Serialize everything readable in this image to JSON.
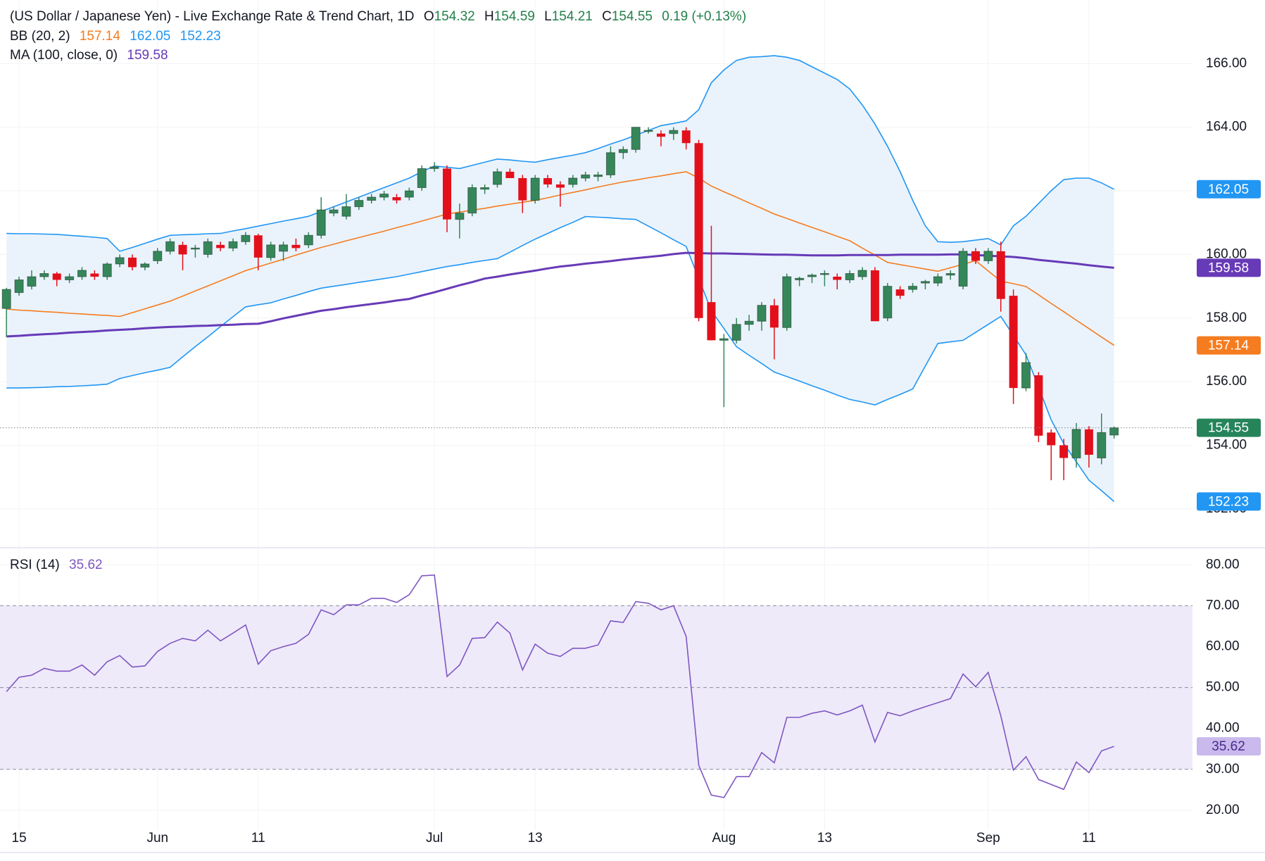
{
  "chart_data": [
    {
      "type": "candlestick",
      "title": "(US Dollar / Japanese Yen) - Live Exchange Rate & Trend Chart, 1D",
      "ohlc_labels": [
        "O",
        "H",
        "L",
        "C"
      ],
      "change": "0.19 (+0.13%)",
      "categories": [
        null,
        "15",
        null,
        null,
        null,
        null,
        null,
        null,
        null,
        null,
        null,
        null,
        "Jun",
        null,
        null,
        null,
        null,
        null,
        null,
        null,
        "11",
        null,
        null,
        null,
        null,
        null,
        null,
        null,
        null,
        null,
        null,
        null,
        null,
        null,
        "Jul",
        null,
        null,
        null,
        null,
        null,
        null,
        null,
        "13",
        null,
        null,
        null,
        null,
        null,
        null,
        null,
        null,
        null,
        null,
        null,
        null,
        null,
        null,
        "Aug",
        null,
        null,
        null,
        null,
        null,
        null,
        null,
        "13",
        null,
        null,
        null,
        null,
        null,
        null,
        null,
        null,
        null,
        null,
        null,
        null,
        "Sep",
        null,
        null,
        null,
        null,
        null,
        null,
        null,
        "11",
        null,
        null
      ],
      "open": [
        158.3,
        158.8,
        159.0,
        159.3,
        159.4,
        159.2,
        159.3,
        159.4,
        159.3,
        159.7,
        159.9,
        159.6,
        159.8,
        160.1,
        160.3,
        160.2,
        160.0,
        160.3,
        160.2,
        160.4,
        160.6,
        159.9,
        160.1,
        160.3,
        160.3,
        160.6,
        161.3,
        161.2,
        161.5,
        161.7,
        161.8,
        161.8,
        161.8,
        162.1,
        162.7,
        162.7,
        161.1,
        161.3,
        162.05,
        162.2,
        162.6,
        162.4,
        161.7,
        162.4,
        162.2,
        162.2,
        162.4,
        162.45,
        162.5,
        163.2,
        163.3,
        163.9,
        163.8,
        163.8,
        163.9,
        163.5,
        158.5,
        157.3,
        157.3,
        157.8,
        157.9,
        158.4,
        157.7,
        159.2,
        159.3,
        159.4,
        159.3,
        159.2,
        159.3,
        159.5,
        158.0,
        158.9,
        158.9,
        159.1,
        159.1,
        159.35,
        159.0,
        160.1,
        159.8,
        160.1,
        158.7,
        155.8,
        156.2,
        154.4,
        154.0,
        153.6,
        154.5,
        153.6,
        154.32
      ],
      "high": [
        158.95,
        159.3,
        159.5,
        159.5,
        159.45,
        159.4,
        159.6,
        159.5,
        159.75,
        160.0,
        160.0,
        159.75,
        160.2,
        160.5,
        160.4,
        160.3,
        160.5,
        160.4,
        160.5,
        160.7,
        160.65,
        160.4,
        160.4,
        160.5,
        160.7,
        161.8,
        161.5,
        161.9,
        161.8,
        161.9,
        162.0,
        161.9,
        162.1,
        162.8,
        162.9,
        162.8,
        161.6,
        162.2,
        162.2,
        162.7,
        162.7,
        162.5,
        162.5,
        162.5,
        162.3,
        162.5,
        162.6,
        162.6,
        163.4,
        163.4,
        164.0,
        164.0,
        163.9,
        164.0,
        164.0,
        163.6,
        160.9,
        157.5,
        158.0,
        158.1,
        158.5,
        158.6,
        159.4,
        159.3,
        159.4,
        159.5,
        159.4,
        159.5,
        159.6,
        159.6,
        159.1,
        159.0,
        159.1,
        159.2,
        159.4,
        159.5,
        160.2,
        160.2,
        160.2,
        160.4,
        158.9,
        156.9,
        156.3,
        154.5,
        154.2,
        154.7,
        154.6,
        155.0,
        154.59
      ],
      "low": [
        157.4,
        158.7,
        158.9,
        159.2,
        159.0,
        159.1,
        159.2,
        159.2,
        159.2,
        159.6,
        159.5,
        159.5,
        159.7,
        160.0,
        159.5,
        159.9,
        159.9,
        160.1,
        160.1,
        160.3,
        159.5,
        159.8,
        159.8,
        160.1,
        160.2,
        160.5,
        161.2,
        161.1,
        161.4,
        161.6,
        161.7,
        161.6,
        161.7,
        162.0,
        162.6,
        160.7,
        160.5,
        161.2,
        161.9,
        162.1,
        162.4,
        161.3,
        161.6,
        162.1,
        161.5,
        162.1,
        162.3,
        162.3,
        162.4,
        163.0,
        163.2,
        163.8,
        163.4,
        163.6,
        163.3,
        157.9,
        157.3,
        155.2,
        157.2,
        157.6,
        157.6,
        156.7,
        157.6,
        159.0,
        159.1,
        159.0,
        158.9,
        159.1,
        159.2,
        157.9,
        157.9,
        158.6,
        158.8,
        158.9,
        159.0,
        159.2,
        158.9,
        159.7,
        159.7,
        158.2,
        155.3,
        155.7,
        154.1,
        152.9,
        152.9,
        153.3,
        153.3,
        153.4,
        154.21
      ],
      "close": [
        158.9,
        159.2,
        159.3,
        159.4,
        159.2,
        159.3,
        159.5,
        159.3,
        159.7,
        159.9,
        159.6,
        159.7,
        160.1,
        160.4,
        160.0,
        160.2,
        160.4,
        160.2,
        160.4,
        160.6,
        159.9,
        160.3,
        160.3,
        160.2,
        160.6,
        161.4,
        161.4,
        161.5,
        161.7,
        161.8,
        161.9,
        161.7,
        162.0,
        162.7,
        162.75,
        161.1,
        161.3,
        162.1,
        162.1,
        162.6,
        162.4,
        161.7,
        162.4,
        162.2,
        162.1,
        162.4,
        162.5,
        162.5,
        163.2,
        163.3,
        164.0,
        163.9,
        163.7,
        163.9,
        163.5,
        158.0,
        157.3,
        157.35,
        157.8,
        157.9,
        158.4,
        157.7,
        159.3,
        159.25,
        159.35,
        159.4,
        159.2,
        159.4,
        159.5,
        157.9,
        159.0,
        158.7,
        159.0,
        159.15,
        159.3,
        159.4,
        160.1,
        159.8,
        160.1,
        158.6,
        155.8,
        156.6,
        154.3,
        154.0,
        153.6,
        154.5,
        153.7,
        154.4,
        154.55
      ],
      "up_color": "#35875a",
      "down_color": "#e3101b",
      "last_color": "#26845a",
      "indicators": [
        {
          "name": "BB (20, 2)",
          "fill": "#eaf3fc",
          "lines": [
            {
              "color": "#f57c1f",
              "values": [
                158.28,
                158.25,
                158.23,
                158.2,
                158.18,
                158.15,
                158.13,
                158.1,
                158.08,
                158.05,
                158.17,
                158.29,
                158.41,
                158.53,
                158.69,
                158.85,
                159.01,
                159.17,
                159.33,
                159.49,
                159.61,
                159.73,
                159.85,
                159.98,
                160.1,
                160.22,
                160.32,
                160.43,
                160.53,
                160.63,
                160.73,
                160.84,
                160.94,
                161.05,
                161.16,
                161.27,
                161.33,
                161.39,
                161.45,
                161.52,
                161.58,
                161.64,
                161.7,
                161.78,
                161.87,
                161.95,
                162.03,
                162.12,
                162.2,
                162.28,
                162.34,
                162.41,
                162.47,
                162.54,
                162.6,
                162.4,
                162.15,
                161.97,
                161.8,
                161.62,
                161.45,
                161.27,
                161.13,
                160.99,
                160.85,
                160.71,
                160.57,
                160.43,
                160.2,
                159.98,
                159.75,
                159.68,
                159.61,
                159.54,
                159.47,
                159.58,
                159.69,
                159.8,
                159.48,
                159.16,
                159.08,
                158.99,
                158.73,
                158.46,
                158.2,
                157.93,
                157.67,
                157.4,
                157.14
              ]
            },
            {
              "color": "#2196f3",
              "values": [
                160.66,
                160.65,
                160.65,
                160.64,
                160.63,
                160.6,
                160.57,
                160.54,
                160.5,
                160.1,
                160.22,
                160.35,
                160.48,
                160.6,
                160.62,
                160.63,
                160.65,
                160.66,
                160.74,
                160.81,
                160.89,
                160.97,
                161.05,
                161.12,
                161.2,
                161.35,
                161.5,
                161.65,
                161.8,
                161.95,
                162.1,
                162.25,
                162.4,
                162.6,
                162.78,
                162.74,
                162.7,
                162.8,
                162.9,
                163.0,
                162.97,
                162.93,
                162.9,
                162.98,
                163.05,
                163.12,
                163.2,
                163.33,
                163.47,
                163.6,
                163.75,
                163.9,
                164.05,
                164.12,
                164.2,
                164.55,
                165.4,
                165.8,
                166.1,
                166.2,
                166.22,
                166.25,
                166.2,
                166.1,
                165.9,
                165.7,
                165.5,
                165.2,
                164.7,
                164.1,
                163.4,
                162.6,
                161.7,
                160.9,
                160.4,
                160.38,
                160.4,
                160.45,
                160.5,
                160.3,
                160.9,
                161.2,
                161.6,
                162.0,
                162.35,
                162.4,
                162.4,
                162.25,
                162.05
              ]
            },
            {
              "color": "#2196f3",
              "values": [
                155.8,
                155.8,
                155.81,
                155.82,
                155.84,
                155.85,
                155.87,
                155.89,
                155.92,
                156.1,
                156.19,
                156.28,
                156.36,
                156.45,
                156.78,
                157.1,
                157.41,
                157.73,
                158.04,
                158.35,
                158.42,
                158.48,
                158.6,
                158.71,
                158.83,
                158.94,
                159.0,
                159.06,
                159.12,
                159.18,
                159.24,
                159.3,
                159.38,
                159.46,
                159.54,
                159.62,
                159.68,
                159.75,
                159.81,
                159.87,
                160.07,
                160.28,
                160.48,
                160.66,
                160.84,
                161.01,
                161.19,
                161.17,
                161.15,
                161.12,
                161.1,
                160.89,
                160.68,
                160.46,
                160.25,
                159.24,
                158.23,
                157.67,
                157.1,
                156.83,
                156.57,
                156.3,
                156.16,
                156.02,
                155.87,
                155.73,
                155.58,
                155.44,
                155.36,
                155.27,
                155.44,
                155.6,
                155.77,
                156.49,
                157.2,
                157.25,
                157.3,
                157.55,
                157.8,
                158.05,
                157.45,
                156.84,
                155.82,
                154.8,
                154.05,
                153.48,
                152.9,
                152.57,
                152.23
              ]
            }
          ]
        },
        {
          "name": "MA (100, close, 0)",
          "lines": [
            {
              "color": "#673ab7",
              "values": [
                157.42,
                157.44,
                157.47,
                157.49,
                157.51,
                157.54,
                157.56,
                157.58,
                157.61,
                157.63,
                157.65,
                157.68,
                157.7,
                157.72,
                157.73,
                157.75,
                157.76,
                157.78,
                157.79,
                157.81,
                157.82,
                157.9,
                157.99,
                158.07,
                158.15,
                158.23,
                158.28,
                158.34,
                158.39,
                158.44,
                158.49,
                158.55,
                158.6,
                158.71,
                158.81,
                158.92,
                159.03,
                159.13,
                159.24,
                159.3,
                159.37,
                159.43,
                159.49,
                159.56,
                159.62,
                159.66,
                159.71,
                159.75,
                159.79,
                159.84,
                159.88,
                159.92,
                159.96,
                160.01,
                160.05,
                160.04,
                160.03,
                160.03,
                160.02,
                160.01,
                160.0,
                159.99,
                159.99,
                159.98,
                159.97,
                159.97,
                159.97,
                159.98,
                159.98,
                159.98,
                159.98,
                159.99,
                159.99,
                159.99,
                159.99,
                160.0,
                160.0,
                159.98,
                159.96,
                159.94,
                159.92,
                159.88,
                159.83,
                159.79,
                159.75,
                159.71,
                159.66,
                159.62,
                159.58
              ]
            }
          ]
        }
      ],
      "ylim": [
        150.8,
        168.0
      ],
      "yticks": [
        {
          "value": 152,
          "label": "152.00"
        },
        {
          "value": 154,
          "label": "154.00"
        },
        {
          "value": 156,
          "label": "156.00"
        },
        {
          "value": 158,
          "label": "158.00"
        },
        {
          "value": 160,
          "label": "160.00"
        },
        {
          "value": 162,
          "label": "162.00"
        },
        {
          "value": 164,
          "label": "164.00"
        },
        {
          "value": 166,
          "label": "166.00"
        }
      ],
      "grid": true
    },
    {
      "type": "line",
      "title": "RSI (14)",
      "color": "#7e57c2",
      "values": [
        49,
        52.5,
        53,
        54.7,
        54,
        54,
        55.5,
        53,
        56.3,
        57.8,
        55,
        55.3,
        58.8,
        60.8,
        62,
        61.4,
        64,
        61.4,
        63.3,
        65.3,
        55.7,
        59,
        60,
        60.8,
        63,
        69,
        67.8,
        70.2,
        70.2,
        71.8,
        71.8,
        70.8,
        72.7,
        77.3,
        77.5,
        52.7,
        55.5,
        62,
        62.2,
        66,
        63.3,
        54.3,
        60.6,
        58.4,
        57.6,
        59.6,
        59.6,
        60.4,
        66.3,
        65.9,
        71,
        70.6,
        69,
        70,
        62.5,
        31,
        23.7,
        23.1,
        28.2,
        28.2,
        34.1,
        31.6,
        42.7,
        42.7,
        43.7,
        44.3,
        43.3,
        44.3,
        45.7,
        36.7,
        43.9,
        43.1,
        44.3,
        45.3,
        46.3,
        47.3,
        53.3,
        50.2,
        53.7,
        43.1,
        29.8,
        33.1,
        27.5,
        26.3,
        25.1,
        31.8,
        29.2,
        34.5,
        35.62
      ],
      "levels": [
        70,
        50,
        30
      ],
      "band_fill": "#efeafa",
      "ylim": [
        10,
        84
      ],
      "yticks": [
        {
          "value": 20,
          "label": "20.00"
        },
        {
          "value": 30,
          "label": "30.00"
        },
        {
          "value": 40,
          "label": "40.00"
        },
        {
          "value": 50,
          "label": "50.00"
        },
        {
          "value": 60,
          "label": "60.00"
        },
        {
          "value": 70,
          "label": "70.00"
        },
        {
          "value": 80,
          "label": "80.00"
        }
      ],
      "grid": true
    }
  ]
}
